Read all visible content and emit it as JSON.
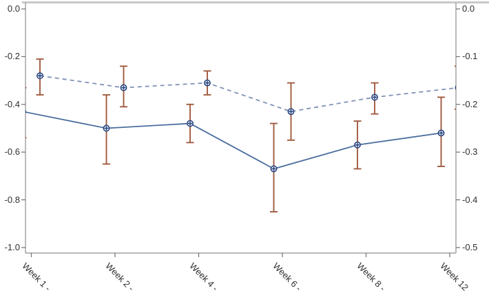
{
  "chart_data": {
    "type": "line",
    "title": "",
    "xlabel": "",
    "ylabel_left": "",
    "ylabel_right": "",
    "grid": false,
    "legend": "none",
    "categories": [
      "Week 1 -",
      "Week 2 -",
      "Week 4 -",
      "Week 6 -",
      "Week 8 -",
      "Week 12"
    ],
    "x_axis": {
      "label_rotation_deg": 45
    },
    "y_axis_left": {
      "range": [
        0.0,
        -1.0
      ],
      "ticks": [
        0.0,
        -0.2,
        -0.4,
        -0.6,
        -0.8,
        -1.0
      ],
      "labels": [
        "0.0",
        "-0.2",
        "-0.4",
        "-0.6",
        "-0.8",
        "-1.0"
      ]
    },
    "y_axis_right": {
      "range": [
        0.0,
        -0.5
      ],
      "ticks": [
        0.0,
        -0.1,
        -0.2,
        -0.3,
        -0.4,
        -0.5
      ],
      "labels": [
        "0.0",
        "-0.1",
        "-0.2",
        "-0.3",
        "-0.4",
        "-0.5"
      ]
    },
    "series": [
      {
        "id": "series-solid",
        "line_style": "solid",
        "line_color": "#4a6d9e",
        "marker": "circle-plus",
        "marker_color": "#24407a",
        "marker_fill": "#e9eef7",
        "values": [
          -0.43,
          -0.5,
          -0.48,
          -0.67,
          -0.57,
          -0.52
        ],
        "ci_high": [
          -0.33,
          -0.36,
          -0.4,
          -0.48,
          -0.47,
          -0.37
        ],
        "ci_low": [
          -0.54,
          -0.65,
          -0.56,
          -0.85,
          -0.67,
          -0.66
        ]
      },
      {
        "id": "series-dashed",
        "line_style": "dashed",
        "line_color": "#7e91b4",
        "marker": "circle-plus",
        "marker_color": "#24407a",
        "marker_fill": "#e9eef7",
        "values": [
          -0.28,
          -0.33,
          -0.31,
          -0.43,
          -0.37,
          -0.33
        ],
        "ci_high": [
          -0.21,
          -0.24,
          -0.26,
          -0.31,
          -0.31,
          -0.24
        ],
        "ci_low": [
          -0.36,
          -0.41,
          -0.36,
          -0.55,
          -0.44,
          -0.42
        ]
      }
    ],
    "error_bar_color": "#a15a3e",
    "colors": {
      "axis_line": "#8e8e8e",
      "tick_mark": "#6f6f6f",
      "tick_label": "#2f2f2f",
      "top_border": "#c9c9c9",
      "background": "#ffffff"
    }
  }
}
